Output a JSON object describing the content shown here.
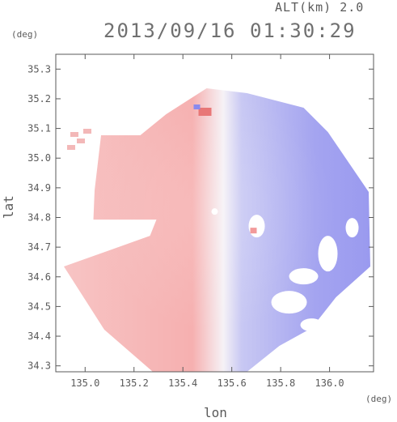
{
  "header": {
    "altitude_label": "ALT(km) 2.0",
    "timestamp": "2013/09/16 01:30:29"
  },
  "units": {
    "top_left": "(deg)",
    "bottom_right": "(deg)"
  },
  "chart_data": {
    "type": "heatmap",
    "title": "2013/09/16 01:30:29",
    "xlabel": "lon",
    "ylabel": "lat",
    "xlim": [
      134.88,
      136.18
    ],
    "ylim": [
      34.28,
      35.35
    ],
    "x_ticks": [
      135.0,
      135.2,
      135.4,
      135.6,
      135.8,
      136.0
    ],
    "x_tick_labels": [
      "135.0",
      "135.2",
      "135.4",
      "135.6",
      "135.8",
      "136.0"
    ],
    "y_ticks": [
      34.3,
      34.4,
      34.5,
      34.6,
      34.7,
      34.8,
      34.9,
      35.0,
      35.1,
      35.2,
      35.3
    ],
    "y_tick_labels": [
      "34.3",
      "34.4",
      "34.5",
      "34.6",
      "34.7",
      "34.8",
      "34.9",
      "35.0",
      "35.1",
      "35.2",
      "35.3"
    ],
    "radar_center": {
      "lon": 135.53,
      "lat": 34.82
    },
    "colors": {
      "negative": "#8a8aee",
      "positive": "#f29a9a",
      "neutral": "#f4f4fb"
    },
    "grid": false
  }
}
